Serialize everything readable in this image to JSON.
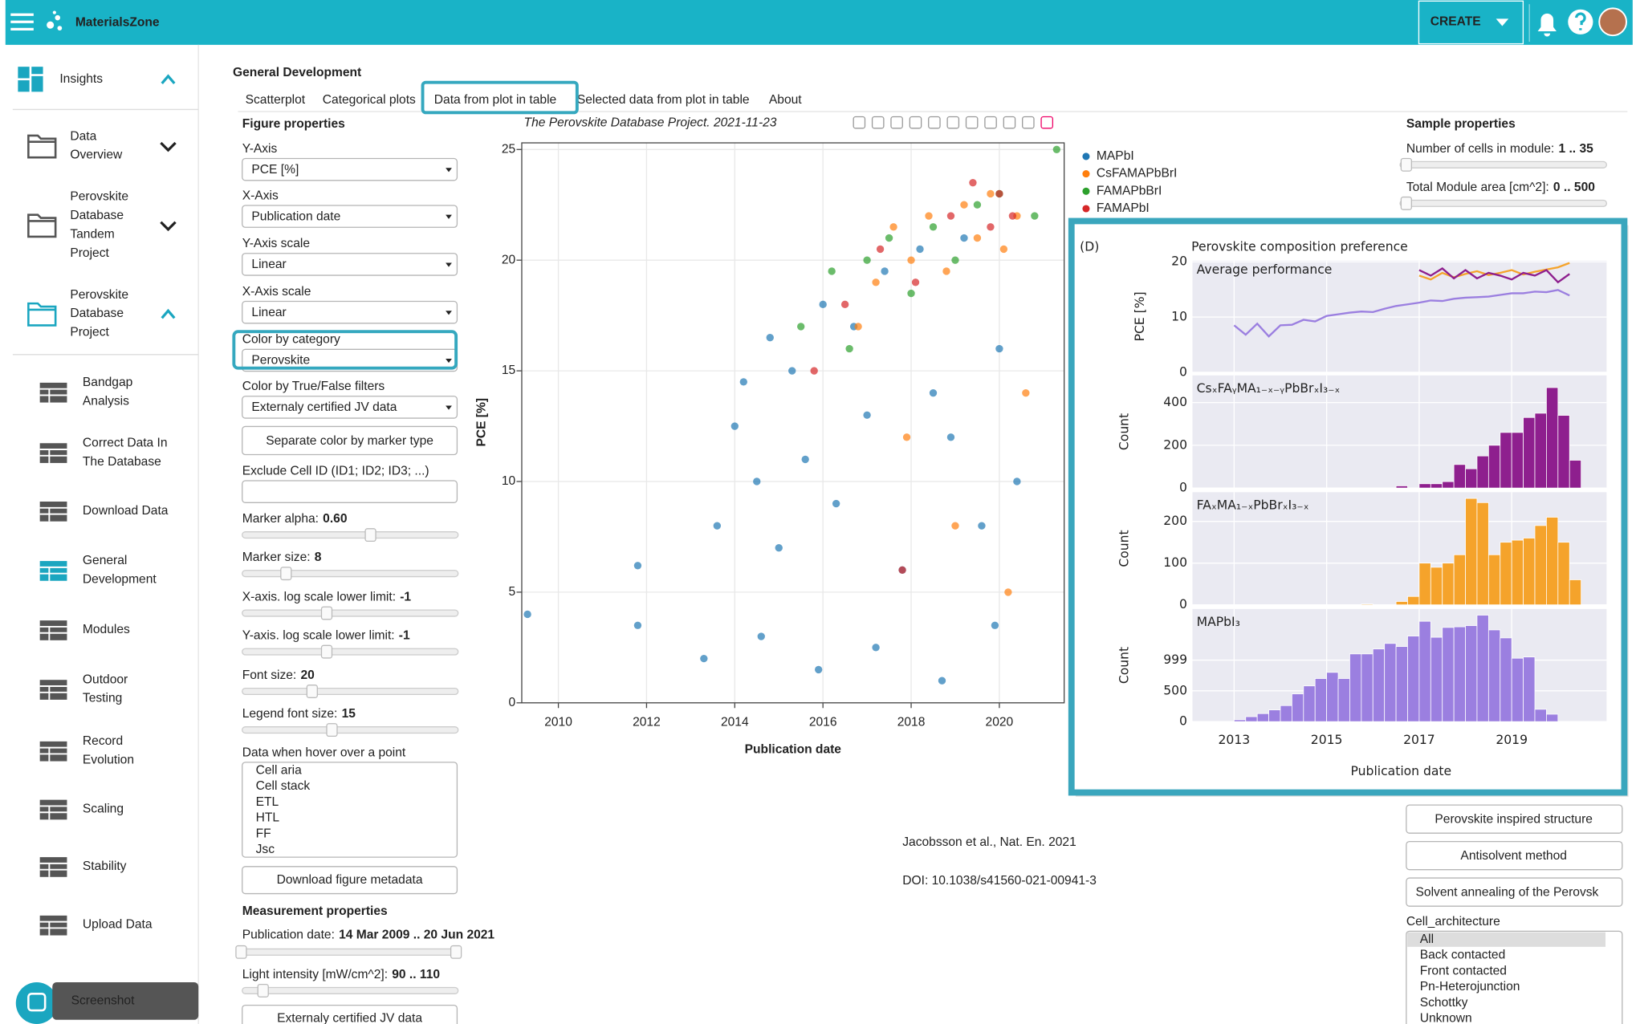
{
  "header": {
    "brand": "MaterialsZone",
    "create_button": "CREATE"
  },
  "sidebar": {
    "items": [
      {
        "lines": [
          "Insights"
        ]
      },
      {
        "lines": [
          "Data",
          "Overview"
        ]
      },
      {
        "lines": [
          "Perovskite",
          "Database",
          "Tandem",
          "Project"
        ]
      },
      {
        "lines": [
          "Perovskite",
          "Database",
          "Project"
        ]
      },
      {
        "lines": [
          "Bandgap",
          "Analysis"
        ]
      },
      {
        "lines": [
          "Correct Data In",
          "The Database"
        ]
      },
      {
        "lines": [
          "Download Data"
        ]
      },
      {
        "lines": [
          "General",
          "Development"
        ]
      },
      {
        "lines": [
          "Modules"
        ]
      },
      {
        "lines": [
          "Outdoor",
          "Testing"
        ]
      },
      {
        "lines": [
          "Record",
          "Evolution"
        ]
      },
      {
        "lines": [
          "Scaling"
        ]
      },
      {
        "lines": [
          "Stability"
        ]
      },
      {
        "lines": [
          "Upload Data"
        ]
      }
    ],
    "tooltip": "Screenshot"
  },
  "main": {
    "title": "General Development",
    "tabs": [
      "Scatterplot",
      "Categorical plots",
      "Data from plot in table",
      "Selected data from plot in table",
      "About"
    ]
  },
  "figure_properties": {
    "heading": "Figure properties",
    "selects": [
      {
        "label": "Y-Axis",
        "value": "PCE [%]"
      },
      {
        "label": "X-Axis",
        "value": "Publication date"
      },
      {
        "label": "Y-Axis scale",
        "value": "Linear"
      },
      {
        "label": "X-Axis scale",
        "value": "Linear"
      },
      {
        "label": "Color by category",
        "value": "Perovskite"
      },
      {
        "label": "Color by True/False filters",
        "value": "Externaly certified JV data"
      }
    ],
    "marker_button": "Separate color by marker type",
    "exclude_label": "Exclude Cell ID (ID1; ID2; ID3; ...)",
    "sliders": [
      {
        "label": "Marker alpha:",
        "value": "0.60"
      },
      {
        "label": "Marker size:",
        "value": "8"
      },
      {
        "label": "X-axis. log scale lower limit:",
        "value": "-1"
      },
      {
        "label": "Y-axis. log scale lower limit:",
        "value": "-1"
      },
      {
        "label": "Font size:",
        "value": "20"
      },
      {
        "label": "Legend font size:",
        "value": "15"
      }
    ],
    "hover_label": "Data when hover over a point",
    "hover_options": [
      "Cell aria",
      "Cell stack",
      "ETL",
      "HTL",
      "FF",
      "Jsc"
    ],
    "metadata_button": "Download figure metadata"
  },
  "measurement_properties": {
    "heading": "Measurement properties",
    "ranges": [
      {
        "label": "Publication date:",
        "value": "14 Mar 2009 .. 20 Jun 2021"
      },
      {
        "label": "Light intensity [mW/cm^2]:",
        "value": "90 .. 110"
      }
    ],
    "button": "Externaly certified JV data"
  },
  "sample_properties": {
    "heading": "Sample properties",
    "ranges": [
      {
        "label": "Number of cells in module:",
        "value": "1 .. 35"
      },
      {
        "label": "Total Module area [cm^2]:",
        "value": "0 .. 500"
      }
    ],
    "buttons": [
      "Perovskite inspired structure",
      "Antisolvent method",
      "Solvent annealing of the Perovsk"
    ],
    "list_label": "Cell_architecture",
    "list_options": [
      "All",
      "Back contacted",
      "Front contacted",
      "Pn-Heterojunction",
      "Schottky",
      "Unknown"
    ]
  },
  "citation": {
    "lines": [
      "Jacobsson et al., Nat. En. 2021",
      "DOI: 10.1038/s41560-021-00941-3"
    ]
  },
  "inset": {
    "panel_label": "(D)",
    "title": "Perovskite composition preference",
    "x_label": "Publication date"
  },
  "chart_data": [
    {
      "type": "scatter",
      "subtitle": "The Perovskite Database Project. 2021-11-23",
      "x_label": "Publication date",
      "y_label": "PCE [%]",
      "xlim": [
        2009.17,
        2021.47
      ],
      "ylim": [
        0,
        25.3
      ],
      "xticks": [
        2010,
        2012,
        2014,
        2016,
        2018,
        2020
      ],
      "yticks": [
        0,
        5,
        10,
        15,
        20,
        25
      ],
      "grid": true,
      "series": [
        {
          "name": "MAPbI",
          "color": "#1f77b4",
          "x": [
            2009.3,
            2011.8,
            2011.8,
            2013.3,
            2013.6,
            2014.0,
            2014.2,
            2014.5,
            2014.8,
            2015.0,
            2015.3,
            2015.6,
            2016.0,
            2016.3,
            2016.7,
            2017.0,
            2017.4,
            2017.8,
            2018.2,
            2018.5,
            2018.9,
            2019.2,
            2019.6,
            2020.0,
            2020.4,
            2014.6,
            2015.9,
            2017.2,
            2018.7,
            2019.9
          ],
          "values": [
            4.0,
            6.2,
            3.5,
            2.0,
            8.0,
            12.5,
            14.5,
            10.0,
            16.5,
            7.0,
            15.0,
            11.0,
            18.0,
            9.0,
            17.0,
            13.0,
            19.5,
            6.0,
            20.5,
            14.0,
            12.0,
            21.0,
            8.0,
            16.0,
            10.0,
            3.0,
            1.5,
            2.5,
            1.0,
            3.5
          ]
        },
        {
          "name": "CsFAMAPbBrI",
          "color": "#ff7f0e",
          "x": [
            2016.8,
            2017.2,
            2017.6,
            2018.0,
            2018.4,
            2018.8,
            2019.2,
            2019.5,
            2019.8,
            2020.1,
            2020.4,
            2017.9,
            2019.0,
            2020.2,
            2020.6
          ],
          "values": [
            17.0,
            19.0,
            21.5,
            20.0,
            22.0,
            19.5,
            22.5,
            21.0,
            23.0,
            20.5,
            22.0,
            12.0,
            8.0,
            5.0,
            14.0
          ]
        },
        {
          "name": "FAMAPbBrI",
          "color": "#2ca02c",
          "x": [
            2015.5,
            2016.2,
            2016.6,
            2017.0,
            2017.5,
            2018.0,
            2018.5,
            2019.0,
            2019.5,
            2020.0,
            2020.8,
            2021.3
          ],
          "values": [
            17.0,
            19.5,
            16.0,
            20.0,
            21.0,
            18.5,
            21.5,
            20.0,
            22.5,
            23.0,
            22.0,
            25.0
          ]
        },
        {
          "name": "FAMAPbI",
          "color": "#d62728",
          "x": [
            2015.8,
            2016.5,
            2017.3,
            2018.1,
            2018.9,
            2019.4,
            2019.8,
            2020.3,
            2017.8,
            2020.0
          ],
          "values": [
            15.0,
            18.0,
            20.5,
            19.0,
            22.0,
            23.5,
            21.5,
            22.0,
            6.0,
            23.0
          ]
        }
      ]
    },
    {
      "type": "line",
      "subtitle": "Average performance",
      "y_label": "PCE [%]",
      "xlim": [
        2012.1,
        2021.05
      ],
      "ylim": [
        0,
        20.2
      ],
      "yticks": [
        0,
        10,
        20
      ],
      "series": [
        {
          "color": "#9b7fe0",
          "x": [
            2013,
            2013.25,
            2013.5,
            2013.75,
            2014,
            2014.25,
            2014.5,
            2014.75,
            2015,
            2015.25,
            2015.5,
            2015.75,
            2016,
            2016.25,
            2016.5,
            2016.75,
            2017,
            2017.25,
            2017.5,
            2017.75,
            2018,
            2018.25,
            2018.5,
            2018.75,
            2019,
            2019.25,
            2019.5,
            2019.75,
            2020,
            2020.25
          ],
          "values": [
            8.5,
            6.8,
            8.8,
            6.5,
            8.5,
            8.6,
            9.5,
            9.2,
            10.2,
            10.5,
            10.8,
            11.0,
            10.9,
            11.5,
            12.0,
            12.3,
            12.6,
            13.0,
            12.9,
            13.3,
            13.5,
            13.6,
            13.7,
            14.0,
            14.3,
            14.3,
            14.6,
            14.5,
            14.9,
            13.9
          ]
        },
        {
          "color": "#f5a32b",
          "x": [
            2017,
            2017.25,
            2017.5,
            2017.75,
            2018,
            2018.25,
            2018.5,
            2018.75,
            2019,
            2019.25,
            2019.5,
            2019.75,
            2020,
            2020.25
          ],
          "values": [
            17.5,
            16.8,
            18.0,
            17.2,
            17.8,
            18.3,
            17.6,
            18.0,
            18.5,
            17.7,
            18.2,
            18.6,
            19.0,
            19.8
          ]
        },
        {
          "color": "#8e1f8e",
          "x": [
            2017,
            2017.25,
            2017.5,
            2017.75,
            2018,
            2018.25,
            2018.5,
            2018.75,
            2019,
            2019.25,
            2019.5,
            2019.75,
            2020,
            2020.25
          ],
          "values": [
            18.5,
            17.5,
            18.8,
            17.0,
            18.5,
            17.0,
            18.0,
            17.5,
            16.8,
            18.0,
            17.5,
            18.5,
            16.3,
            17.8
          ]
        }
      ]
    },
    {
      "type": "histogram",
      "title": "CsₓFAᵧMA₁₋ₓ₋ᵧPbBrₓI₃₋ₓ",
      "y_label": "Count",
      "color": "#8e1f8e",
      "xlim": [
        2012.1,
        2021.05
      ],
      "ylim": [
        0,
        527
      ],
      "yticks": [
        0,
        200,
        400
      ],
      "bins": [
        2013,
        2013.25,
        2013.5,
        2013.75,
        2014,
        2014.25,
        2014.5,
        2014.75,
        2015,
        2015.25,
        2015.5,
        2015.75,
        2016,
        2016.25,
        2016.5,
        2016.75,
        2017,
        2017.25,
        2017.5,
        2017.75,
        2018,
        2018.25,
        2018.5,
        2018.75,
        2019,
        2019.25,
        2019.5,
        2019.75,
        2020,
        2020.25,
        2020.5
      ],
      "values": [
        0,
        0,
        0,
        0,
        0,
        0,
        0,
        0,
        0,
        0,
        0,
        0,
        0,
        0,
        10,
        0,
        20,
        20,
        30,
        110,
        90,
        150,
        200,
        260,
        260,
        330,
        350,
        470,
        340,
        130
      ]
    },
    {
      "type": "histogram",
      "title": "FAₓMA₁₋ₓPbBrₓI₃₋ₓ",
      "y_label": "Count",
      "color": "#f5a32b",
      "xlim": [
        2012.1,
        2021.05
      ],
      "ylim": [
        0,
        270
      ],
      "yticks": [
        0,
        100,
        200
      ],
      "bins": [
        2013,
        2013.25,
        2013.5,
        2013.75,
        2014,
        2014.25,
        2014.5,
        2014.75,
        2015,
        2015.25,
        2015.5,
        2015.75,
        2016,
        2016.25,
        2016.5,
        2016.75,
        2017,
        2017.25,
        2017.5,
        2017.75,
        2018,
        2018.25,
        2018.5,
        2018.75,
        2019,
        2019.25,
        2019.5,
        2019.75,
        2020,
        2020.25,
        2020.5
      ],
      "values": [
        0,
        0,
        0,
        0,
        0,
        0,
        0,
        0,
        0,
        0,
        0,
        2,
        0,
        0,
        8,
        20,
        100,
        90,
        100,
        120,
        255,
        245,
        120,
        150,
        155,
        160,
        190,
        210,
        150,
        60
      ]
    },
    {
      "type": "histogram",
      "title": "MAPbI₃",
      "y_label": "Count",
      "color": "#9b7fe0",
      "xlim": [
        2012.1,
        2021.05
      ],
      "ylim": [
        0,
        1830
      ],
      "yticks": [
        0,
        500,
        999
      ],
      "xticks": [
        2013,
        2015,
        2017,
        2019
      ],
      "bins": [
        2013,
        2013.25,
        2013.5,
        2013.75,
        2014,
        2014.25,
        2014.5,
        2014.75,
        2015,
        2015.25,
        2015.5,
        2015.75,
        2016,
        2016.25,
        2016.5,
        2016.75,
        2017,
        2017.25,
        2017.5,
        2017.75,
        2018,
        2018.25,
        2018.5,
        2018.75,
        2019,
        2019.25,
        2019.5,
        2019.75,
        2020,
        2020.25,
        2020.5
      ],
      "values": [
        30,
        80,
        130,
        190,
        260,
        450,
        580,
        700,
        800,
        700,
        1100,
        1100,
        1180,
        1270,
        1220,
        1390,
        1630,
        1370,
        1530,
        1540,
        1560,
        1730,
        1490,
        1360,
        1030,
        1050,
        200,
        120,
        0,
        0
      ]
    }
  ]
}
